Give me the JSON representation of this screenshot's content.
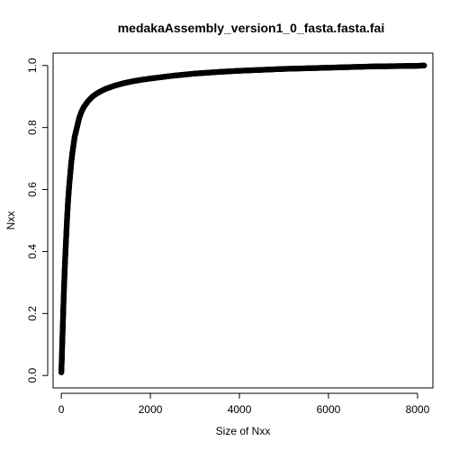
{
  "chart_data": {
    "type": "scatter",
    "title": "medakaAssembly_version1_0_fasta.fasta.fai",
    "xlabel": "Size of Nxx",
    "ylabel": "Nxx",
    "xlim": [
      -185,
      8345
    ],
    "ylim": [
      -0.04,
      1.04
    ],
    "xticks": [
      0,
      2000,
      4000,
      6000,
      8000
    ],
    "xtick_labels": [
      "0",
      "2000",
      "4000",
      "6000",
      "8000"
    ],
    "yticks": [
      0.0,
      0.2,
      0.4,
      0.6,
      0.8,
      1.0
    ],
    "ytick_labels": [
      "0.0",
      "0.2",
      "0.4",
      "0.6",
      "0.8",
      "1.0"
    ],
    "grid": false,
    "marker": "open-circle",
    "series": [
      {
        "x": [
          0,
          10,
          20,
          35,
          50,
          70,
          90,
          110,
          130,
          150,
          175,
          200,
          225,
          250,
          300,
          350,
          400,
          450,
          500,
          600,
          700,
          800,
          900,
          1000,
          1200,
          1400,
          1600,
          1800,
          2000,
          2500,
          3000,
          3500,
          4000,
          4500,
          5000,
          5500,
          6000,
          6500,
          7000,
          7500,
          8000,
          8150
        ],
        "y": [
          0.01,
          0.05,
          0.1,
          0.17,
          0.24,
          0.32,
          0.39,
          0.45,
          0.51,
          0.56,
          0.61,
          0.65,
          0.69,
          0.72,
          0.77,
          0.8,
          0.83,
          0.85,
          0.865,
          0.885,
          0.9,
          0.91,
          0.918,
          0.925,
          0.935,
          0.943,
          0.949,
          0.954,
          0.958,
          0.967,
          0.974,
          0.979,
          0.983,
          0.986,
          0.989,
          0.991,
          0.993,
          0.995,
          0.997,
          0.998,
          0.999,
          1.0
        ]
      }
    ]
  }
}
